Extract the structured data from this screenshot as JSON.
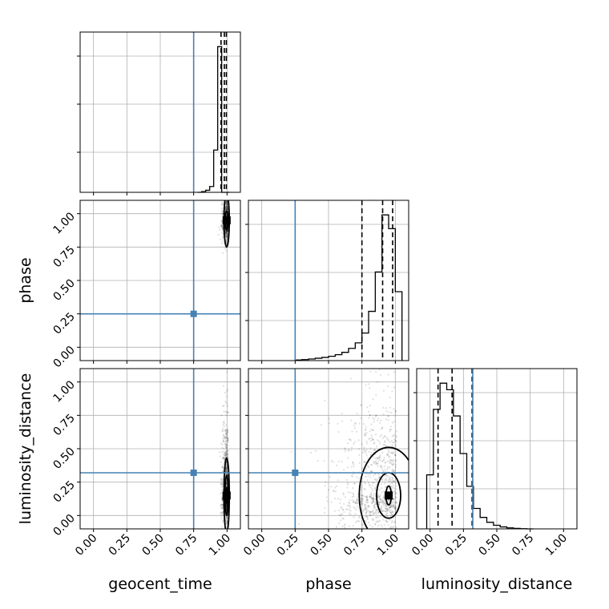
{
  "colors": {
    "truth": "#4682b4",
    "hist": "#000000",
    "grid": "#b0b0b0",
    "points": "#000000"
  },
  "chart_data": {
    "type": "corner",
    "parameters": [
      "geocent_time",
      "phase",
      "luminosity_distance"
    ],
    "truths": {
      "geocent_time": 0.75,
      "phase": 0.25,
      "luminosity_distance": 0.32
    },
    "axis_range": [
      -0.1,
      1.1
    ],
    "ticks": [
      0.0,
      0.25,
      0.5,
      0.75,
      1.0
    ],
    "tick_labels": [
      "0.00",
      "0.25",
      "0.50",
      "0.75",
      "1.00"
    ],
    "grid": true,
    "diagonal": [
      {
        "param": "geocent_time",
        "bins": [
          0.78,
          0.81,
          0.84,
          0.87,
          0.9,
          0.93,
          0.96,
          0.99,
          1.02
        ],
        "counts": [
          0,
          5,
          14,
          40,
          290,
          1000,
          0,
          0
        ],
        "quantiles": [
          0.955,
          0.98,
          0.995
        ]
      },
      {
        "param": "phase",
        "bins": [
          0.25,
          0.3,
          0.35,
          0.4,
          0.45,
          0.5,
          0.55,
          0.6,
          0.65,
          0.7,
          0.75,
          0.8,
          0.85,
          0.9,
          0.95,
          1.0,
          1.05
        ],
        "counts": [
          3,
          5,
          8,
          12,
          16,
          22,
          30,
          42,
          62,
          90,
          140,
          250,
          450,
          740,
          670,
          350
        ],
        "quantiles": [
          0.75,
          0.905,
          0.98
        ]
      },
      {
        "param": "luminosity_distance",
        "bins": [
          -0.025,
          0.025,
          0.075,
          0.125,
          0.175,
          0.225,
          0.275,
          0.325,
          0.375,
          0.425,
          0.475,
          0.525,
          0.575,
          0.625,
          0.675,
          0.725,
          0.775
        ],
        "counts": [
          330,
          730,
          890,
          850,
          690,
          460,
          260,
          125,
          70,
          40,
          22,
          12,
          6,
          3,
          1,
          0
        ],
        "quantiles": [
          0.06,
          0.165,
          0.315
        ]
      }
    ],
    "contours": [
      {
        "x": "geocent_time",
        "y": "phase",
        "center": [
          0.997,
          0.95
        ],
        "levels": [
          [
            0.005,
            0.025
          ],
          [
            0.012,
            0.07
          ],
          [
            0.02,
            0.2
          ]
        ]
      },
      {
        "x": "geocent_time",
        "y": "luminosity_distance",
        "center": [
          0.997,
          0.15
        ],
        "levels": [
          [
            0.005,
            0.06
          ],
          [
            0.012,
            0.15
          ],
          [
            0.02,
            0.28
          ]
        ]
      },
      {
        "x": "phase",
        "y": "luminosity_distance",
        "center": [
          0.95,
          0.15
        ],
        "levels": [
          [
            0.02,
            0.07
          ],
          [
            0.09,
            0.17
          ],
          [
            0.22,
            0.36
          ]
        ]
      }
    ]
  }
}
